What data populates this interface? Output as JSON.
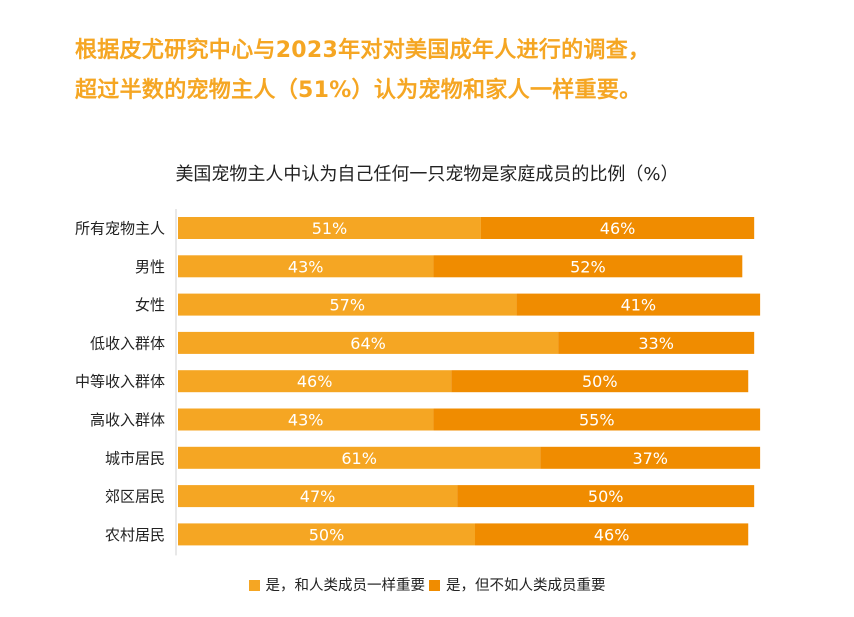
{
  "headline": {
    "line1": "根据皮尤研究中心与2023年对对美国成年人进行的调查，",
    "line2": "超过半数的宠物主人（51%）认为宠物和家人一样重要。"
  },
  "colors": {
    "headline": "#f5a623",
    "series1": "#f5a623",
    "series2": "#f08c00"
  },
  "chart_data": {
    "type": "bar",
    "orientation": "horizontal",
    "stacked": true,
    "title": "美国宠物主人中认为自己任何一只宠物是家庭成员的比例（%）",
    "xlabel": "",
    "ylabel": "",
    "xlim": [
      0,
      100
    ],
    "grid": false,
    "legend_position": "bottom",
    "categories": [
      "所有宠物主人",
      "男性",
      "女性",
      "低收入群体",
      "中等收入群体",
      "高收入群体",
      "城市居民",
      "郊区居民",
      "农村居民"
    ],
    "series": [
      {
        "name": "是，和人类成员一样重要",
        "color": "#f5a623",
        "values": [
          51,
          43,
          57,
          64,
          46,
          43,
          61,
          47,
          50
        ],
        "labels": [
          "51%",
          "43%",
          "57%",
          "64%",
          "46%",
          "43%",
          "61%",
          "47%",
          "50%"
        ]
      },
      {
        "name": "是，但不如人类成员重要",
        "color": "#f08c00",
        "values": [
          46,
          52,
          41,
          33,
          50,
          55,
          37,
          50,
          46
        ],
        "labels": [
          "46%",
          "52%",
          "41%",
          "33%",
          "50%",
          "55%",
          "37%",
          "50%",
          "46%"
        ]
      }
    ]
  }
}
